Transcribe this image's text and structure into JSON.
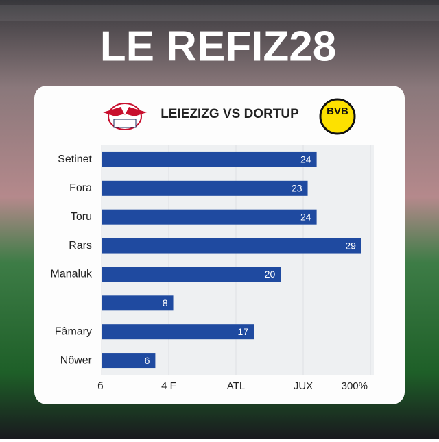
{
  "chart_data": {
    "type": "bar",
    "orientation": "horizontal",
    "title": "LE REFIZ28",
    "subtitle": "LEIEZIZG VS DORTUP",
    "badge": "BVB",
    "categories": [
      "Setinet",
      "Fora",
      "Toru",
      "Rars",
      "Manaluk",
      null,
      "Fâmary",
      "Nôwer"
    ],
    "values": [
      24,
      23,
      24,
      29,
      20,
      8,
      17,
      6
    ],
    "color": "#1f4aa0",
    "xlim": [
      0,
      30
    ],
    "xticks": [
      {
        "value": 0,
        "label": "б"
      },
      {
        "value": 7.5,
        "label": "4 F"
      },
      {
        "value": 15,
        "label": "ATL"
      },
      {
        "value": 22.5,
        "label": "JUX"
      },
      {
        "value": 30,
        "label": "300%"
      }
    ],
    "grid": true
  }
}
